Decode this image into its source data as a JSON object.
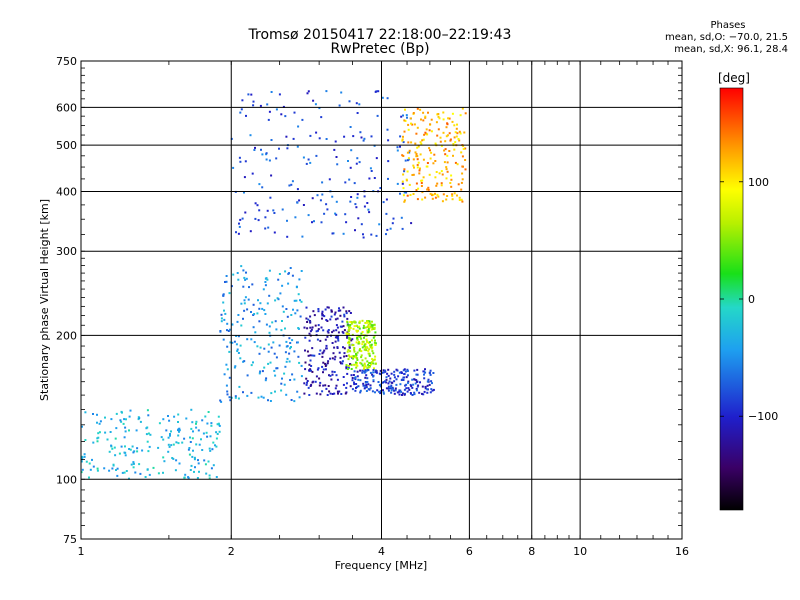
{
  "header": {
    "title_line1": "Tromsø 20150417 22:18:00–22:19:43",
    "title_line2": "RwPretec (Bp)"
  },
  "phase_box": {
    "title": "Phases",
    "line_o": "mean, sd,O: −70.0, 21.5",
    "line_x": "mean, sd,X:  96.1, 28.4"
  },
  "colorbar": {
    "unit_label": "[deg]",
    "ticks": [
      "100",
      "0",
      "−100"
    ],
    "tick_values": [
      100,
      0,
      -100
    ],
    "range": [
      -180,
      180
    ]
  },
  "chart_data": {
    "type": "scatter",
    "title": "Tromsø 20150417 22:18:00–22:19:43",
    "subtitle": "RwPretec (Bp)",
    "xlabel": "Frequency [MHz]",
    "ylabel": "Stationary phase Virtual Height [km]",
    "xscale": "log",
    "yscale": "log",
    "xlim": [
      1,
      16
    ],
    "ylim": [
      75,
      750
    ],
    "xticks": [
      1,
      2,
      4,
      6,
      8,
      10,
      16
    ],
    "xtick_labels": [
      "1",
      "2",
      "4",
      "6",
      "8",
      "10",
      "16"
    ],
    "yticks": [
      75,
      100,
      200,
      300,
      400,
      500,
      600,
      750
    ],
    "ytick_labels": [
      "75",
      "100",
      "200",
      "300",
      "400",
      "500",
      "600",
      "750"
    ],
    "grid": true,
    "color_by": "phase_deg",
    "clusters": [
      {
        "freq_range": [
          1.0,
          1.9
        ],
        "height_range": [
          100,
          140
        ],
        "phase_deg": -30
      },
      {
        "freq_range": [
          1.9,
          2.8
        ],
        "height_range": [
          145,
          280
        ],
        "phase_deg": -45
      },
      {
        "freq_range": [
          2.8,
          3.5
        ],
        "height_range": [
          150,
          230
        ],
        "phase_deg": -110
      },
      {
        "freq_range": [
          3.4,
          3.9
        ],
        "height_range": [
          170,
          215
        ],
        "phase_deg": 60
      },
      {
        "freq_range": [
          3.5,
          5.1
        ],
        "height_range": [
          150,
          170
        ],
        "phase_deg": -90
      },
      {
        "freq_range": [
          2.0,
          4.6
        ],
        "height_range": [
          320,
          650
        ],
        "phase_deg": -80
      },
      {
        "freq_range": [
          4.4,
          5.9
        ],
        "height_range": [
          380,
          600
        ],
        "phase_deg": 120
      }
    ]
  }
}
